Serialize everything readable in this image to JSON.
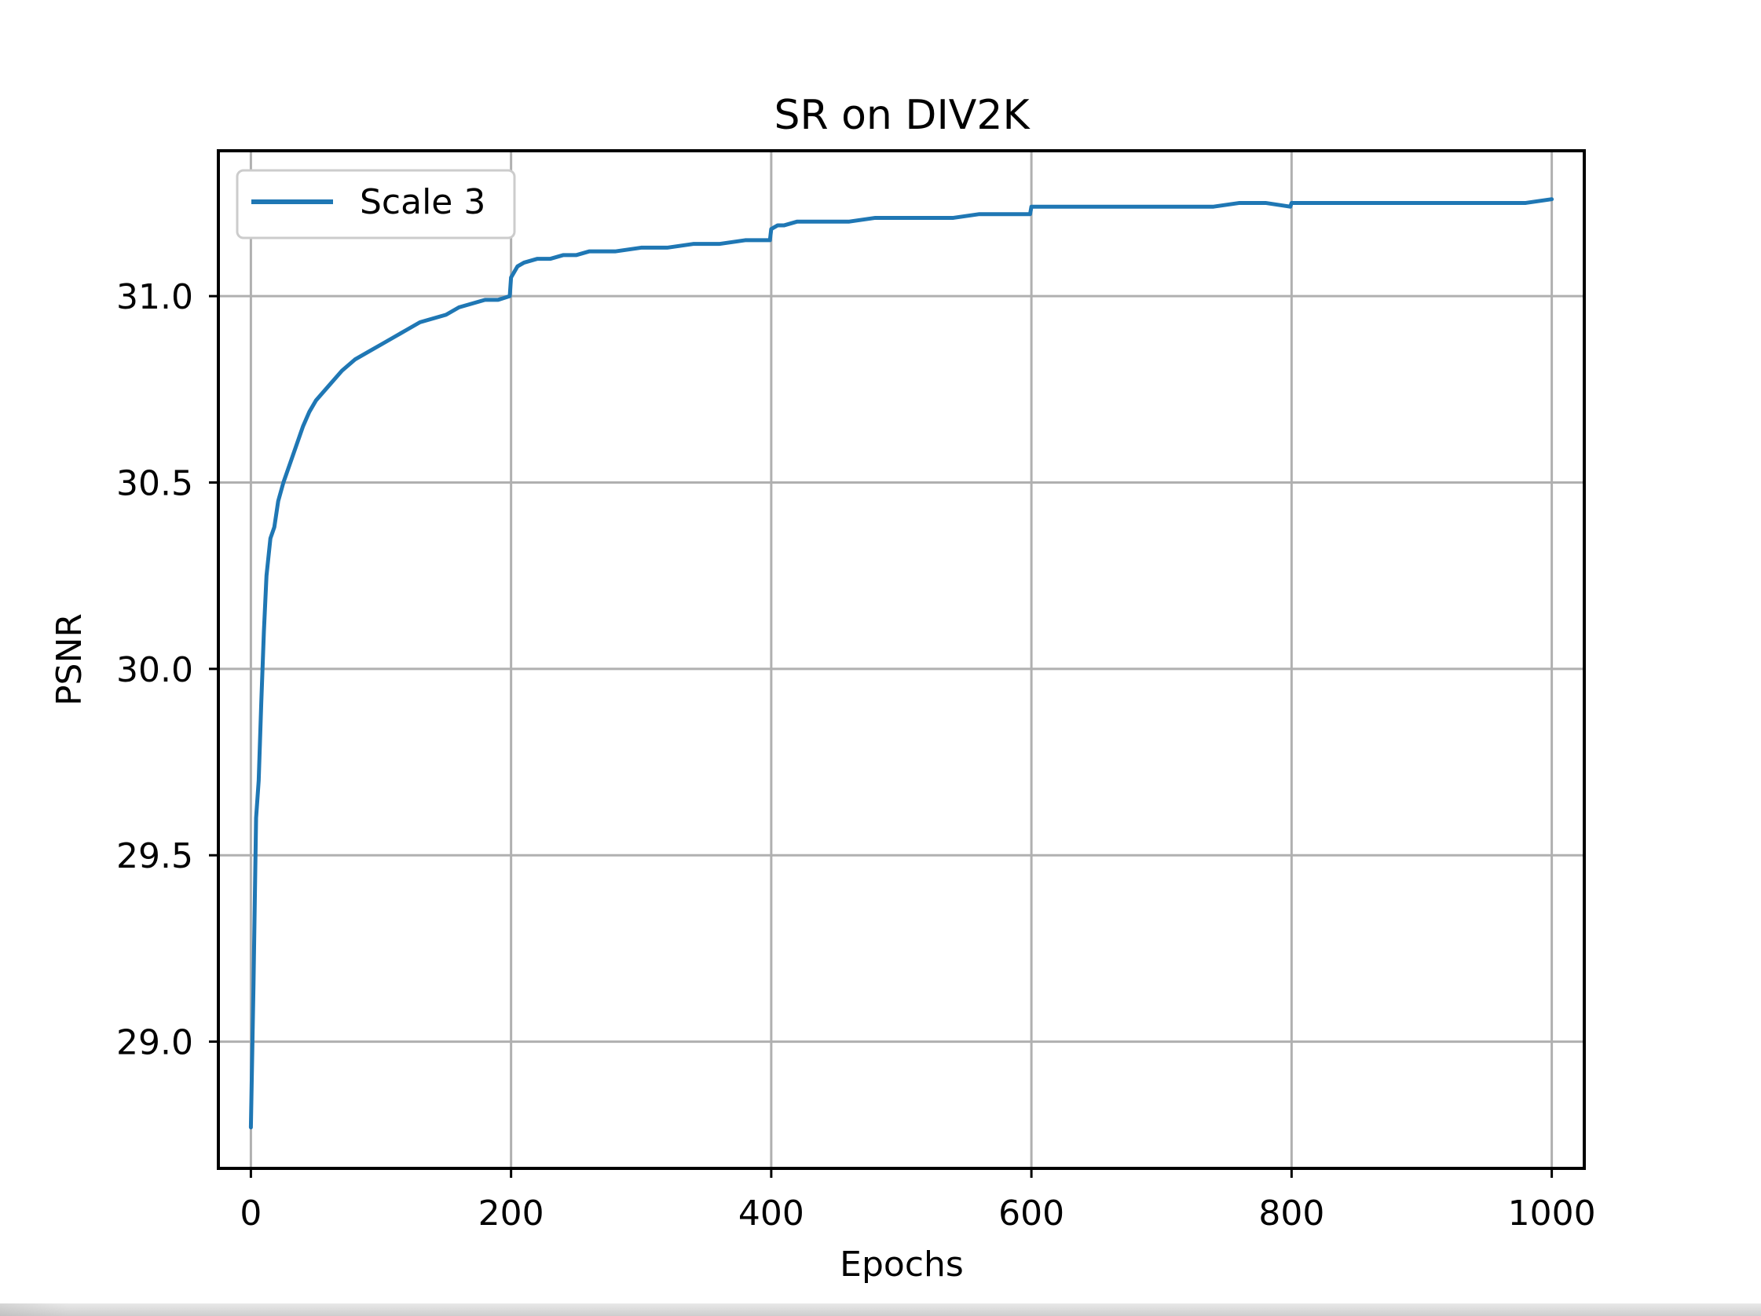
{
  "chart_data": {
    "type": "line",
    "title": "SR on DIV2K",
    "xlabel": "Epochs",
    "ylabel": "PSNR",
    "xlim": [
      -25,
      1025
    ],
    "ylim": [
      28.66,
      31.39
    ],
    "xticks": [
      0,
      200,
      400,
      600,
      800,
      1000
    ],
    "xtick_labels": [
      "0",
      "200",
      "400",
      "600",
      "800",
      "1000"
    ],
    "yticks": [
      29.0,
      29.5,
      30.0,
      30.5,
      31.0
    ],
    "ytick_labels": [
      "29.0",
      "29.5",
      "30.0",
      "30.5",
      "31.0"
    ],
    "grid": true,
    "legend": {
      "placement": "top-left",
      "entries": [
        {
          "name": "Scale 3",
          "color": "#1f77b4"
        }
      ]
    },
    "series": [
      {
        "name": "Scale 3",
        "color": "#1f77b4",
        "x": [
          0,
          2,
          4,
          6,
          8,
          10,
          12,
          15,
          18,
          21,
          25,
          30,
          35,
          40,
          45,
          50,
          60,
          70,
          80,
          90,
          100,
          110,
          120,
          130,
          140,
          150,
          160,
          170,
          180,
          190,
          199,
          200,
          205,
          210,
          220,
          230,
          240,
          250,
          260,
          280,
          300,
          320,
          340,
          360,
          380,
          399,
          400,
          405,
          410,
          420,
          440,
          460,
          480,
          500,
          520,
          540,
          560,
          580,
          599,
          600,
          605,
          620,
          640,
          660,
          680,
          700,
          720,
          740,
          760,
          780,
          799,
          800,
          810,
          820,
          840,
          860,
          880,
          900,
          920,
          940,
          960,
          980,
          1000
        ],
        "y": [
          28.77,
          29.15,
          29.6,
          29.7,
          29.91,
          30.1,
          30.25,
          30.35,
          30.38,
          30.45,
          30.5,
          30.55,
          30.6,
          30.65,
          30.69,
          30.72,
          30.76,
          30.8,
          30.83,
          30.85,
          30.87,
          30.89,
          30.91,
          30.93,
          30.94,
          30.95,
          30.97,
          30.98,
          30.99,
          30.99,
          31.0,
          31.05,
          31.08,
          31.09,
          31.1,
          31.1,
          31.11,
          31.11,
          31.12,
          31.12,
          31.13,
          31.13,
          31.14,
          31.14,
          31.15,
          31.15,
          31.18,
          31.19,
          31.19,
          31.2,
          31.2,
          31.2,
          31.21,
          31.21,
          31.21,
          31.21,
          31.22,
          31.22,
          31.22,
          31.24,
          31.24,
          31.24,
          31.24,
          31.24,
          31.24,
          31.24,
          31.24,
          31.24,
          31.25,
          31.25,
          31.24,
          31.25,
          31.25,
          31.25,
          31.25,
          31.25,
          31.25,
          31.25,
          31.25,
          31.25,
          31.25,
          31.25,
          31.26
        ]
      }
    ]
  }
}
